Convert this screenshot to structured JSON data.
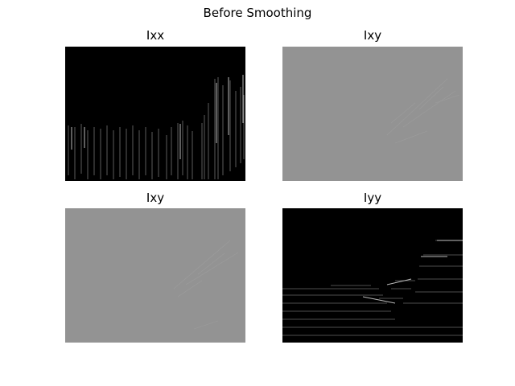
{
  "figure": {
    "title": "Before Smoothing"
  },
  "panels": [
    {
      "title": "Ixx",
      "background": "#000000",
      "edge_color": "#cfcfcf"
    },
    {
      "title": "Ixy",
      "background": "#939393",
      "edge_color": "#a3a3a3"
    },
    {
      "title": "Ixy",
      "background": "#939393",
      "edge_color": "#a3a3a3"
    },
    {
      "title": "Iyy",
      "background": "#000000",
      "edge_color": "#cfcfcf"
    }
  ]
}
